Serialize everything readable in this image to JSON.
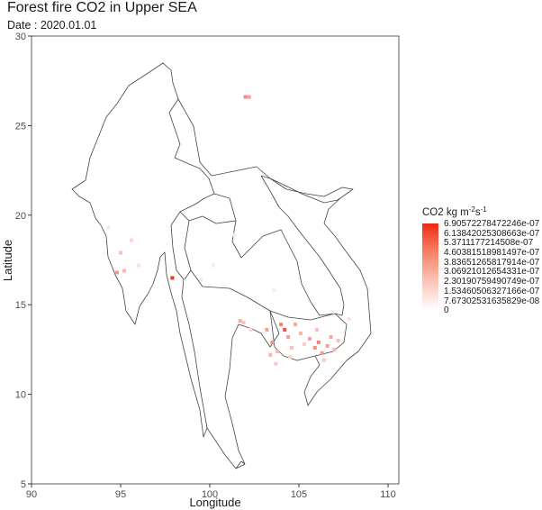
{
  "title": "Forest fire CO2 in Upper SEA",
  "subtitle": "Date : 2020.01.01",
  "chart_data": {
    "type": "heatmap",
    "title": "Forest fire CO2 in Upper SEA",
    "subtitle": "Date : 2020.01.01",
    "xlabel": "Longitude",
    "ylabel": "Latitude",
    "xlim": [
      90,
      110.5
    ],
    "ylim": [
      5,
      30
    ],
    "xticks": [
      90,
      95,
      100,
      105,
      110
    ],
    "yticks": [
      5,
      10,
      15,
      20,
      25,
      30
    ],
    "grid": false,
    "legend_position": "right",
    "colorbar": {
      "title_main": "CO2 kg m",
      "title_exp1": "-2",
      "title_mid": "s",
      "title_exp2": "-1",
      "labels": [
        "6.90572278472246e-07",
        "6.13842025308663e-07",
        "5.3711177214508e-07",
        "4.60381518981497e-07",
        "3.83651265817914e-07",
        "3.06921012654331e-07",
        "2.30190759490749e-07",
        "1.53460506327166e-07",
        "7.67302531635829e-08",
        "0"
      ],
      "colors": [
        "#ee2a12",
        "#ffffff"
      ]
    },
    "points": [
      {
        "lon": 102.0,
        "lat": 26.6,
        "v": 0.55
      },
      {
        "lon": 102.2,
        "lat": 26.6,
        "v": 0.45
      },
      {
        "lon": 97.9,
        "lat": 16.5,
        "v": 0.95
      },
      {
        "lon": 95.0,
        "lat": 17.9,
        "v": 0.3
      },
      {
        "lon": 94.8,
        "lat": 16.8,
        "v": 0.5
      },
      {
        "lon": 95.2,
        "lat": 16.9,
        "v": 0.35
      },
      {
        "lon": 95.6,
        "lat": 18.6,
        "v": 0.2
      },
      {
        "lon": 96.0,
        "lat": 17.2,
        "v": 0.15
      },
      {
        "lon": 94.3,
        "lat": 19.3,
        "v": 0.12
      },
      {
        "lon": 101.7,
        "lat": 14.1,
        "v": 0.4
      },
      {
        "lon": 101.9,
        "lat": 14.0,
        "v": 0.3
      },
      {
        "lon": 102.3,
        "lat": 13.6,
        "v": 0.2
      },
      {
        "lon": 103.2,
        "lat": 13.6,
        "v": 0.45
      },
      {
        "lon": 103.5,
        "lat": 12.9,
        "v": 0.5
      },
      {
        "lon": 103.8,
        "lat": 12.4,
        "v": 0.35
      },
      {
        "lon": 104.0,
        "lat": 13.9,
        "v": 0.6
      },
      {
        "lon": 104.2,
        "lat": 13.6,
        "v": 0.8
      },
      {
        "lon": 104.4,
        "lat": 13.2,
        "v": 0.45
      },
      {
        "lon": 104.6,
        "lat": 12.6,
        "v": 0.3
      },
      {
        "lon": 104.8,
        "lat": 13.9,
        "v": 0.4
      },
      {
        "lon": 105.1,
        "lat": 13.4,
        "v": 0.35
      },
      {
        "lon": 105.3,
        "lat": 12.8,
        "v": 0.25
      },
      {
        "lon": 105.6,
        "lat": 13.1,
        "v": 0.45
      },
      {
        "lon": 105.9,
        "lat": 12.6,
        "v": 0.55
      },
      {
        "lon": 106.1,
        "lat": 12.9,
        "v": 0.6
      },
      {
        "lon": 106.3,
        "lat": 12.3,
        "v": 0.5
      },
      {
        "lon": 106.6,
        "lat": 12.7,
        "v": 0.45
      },
      {
        "lon": 106.8,
        "lat": 13.2,
        "v": 0.4
      },
      {
        "lon": 106.0,
        "lat": 13.6,
        "v": 0.3
      },
      {
        "lon": 107.0,
        "lat": 12.5,
        "v": 0.35
      },
      {
        "lon": 107.2,
        "lat": 13.0,
        "v": 0.3
      },
      {
        "lon": 106.4,
        "lat": 11.9,
        "v": 0.25
      },
      {
        "lon": 103.4,
        "lat": 12.2,
        "v": 0.35
      },
      {
        "lon": 103.7,
        "lat": 11.7,
        "v": 0.25
      },
      {
        "lon": 104.5,
        "lat": 12.1,
        "v": 0.2
      },
      {
        "lon": 103.6,
        "lat": 15.8,
        "v": 0.1
      },
      {
        "lon": 100.2,
        "lat": 17.2,
        "v": 0.1
      },
      {
        "lon": 99.5,
        "lat": 16.4,
        "v": 0.12
      },
      {
        "lon": 101.4,
        "lat": 18.9,
        "v": 0.1
      },
      {
        "lon": 107.8,
        "lat": 14.2,
        "v": 0.15
      },
      {
        "lon": 106.9,
        "lat": 14.6,
        "v": 0.12
      }
    ]
  }
}
